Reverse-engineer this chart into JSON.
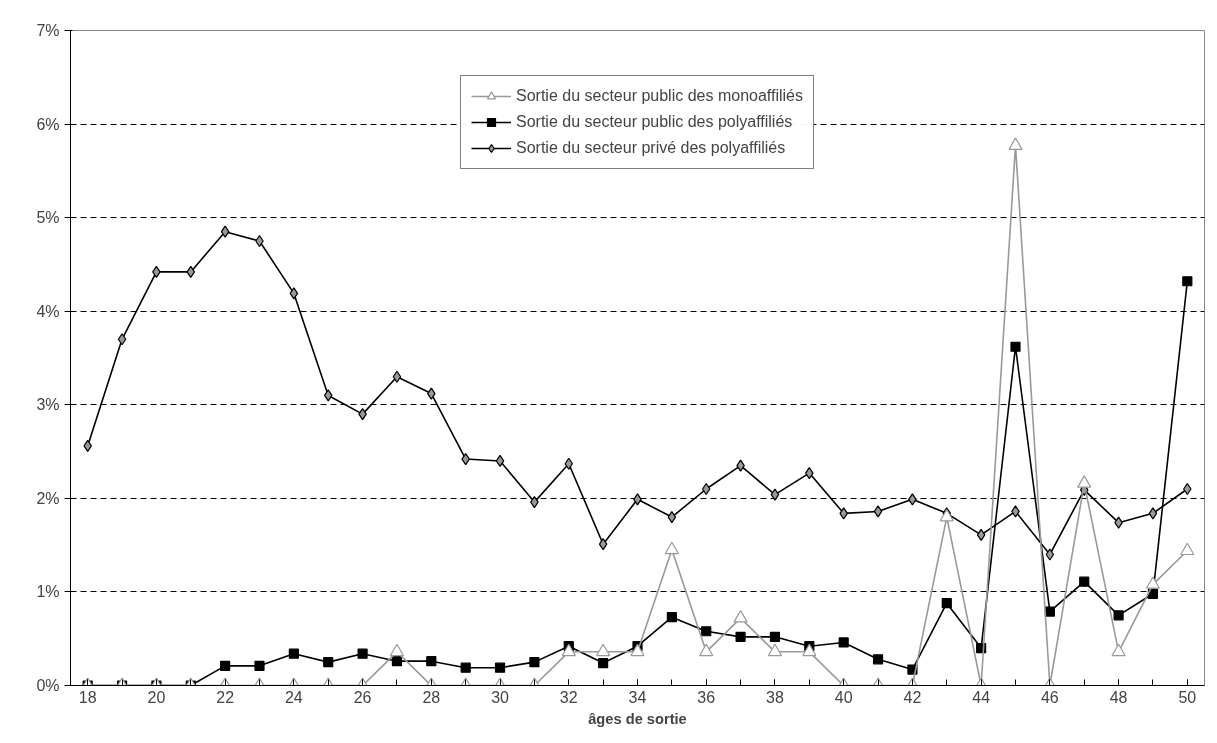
{
  "chart_data": {
    "type": "line",
    "xlabel": "âges de sortie",
    "x": [
      18,
      19,
      20,
      21,
      22,
      23,
      24,
      25,
      26,
      27,
      28,
      29,
      30,
      31,
      32,
      33,
      34,
      35,
      36,
      37,
      38,
      39,
      40,
      41,
      42,
      43,
      44,
      45,
      46,
      47,
      48,
      49,
      50
    ],
    "xlim": [
      17.5,
      50.5
    ],
    "xticks": [
      18,
      20,
      22,
      24,
      26,
      28,
      30,
      32,
      34,
      36,
      38,
      40,
      42,
      44,
      46,
      48,
      50
    ],
    "ylim": [
      0,
      7
    ],
    "yticks": [
      {
        "value": 0,
        "label": "0%"
      },
      {
        "value": 1,
        "label": "1%"
      },
      {
        "value": 2,
        "label": "2%"
      },
      {
        "value": 3,
        "label": "3%"
      },
      {
        "value": 4,
        "label": "4%"
      },
      {
        "value": 5,
        "label": "5%"
      },
      {
        "value": 6,
        "label": "6%"
      },
      {
        "value": 7,
        "label": "7%"
      }
    ],
    "grid": "y",
    "legend": "top",
    "line_style": "solid",
    "series": [
      {
        "name": "Sortie du secteur public des monoaffiliés",
        "color": "#999999",
        "marker": "triangle",
        "values": [
          0,
          0,
          0,
          0,
          0,
          0,
          0,
          0,
          0,
          0.36,
          0,
          0,
          0,
          0,
          0.36,
          0.36,
          0.36,
          1.45,
          0.36,
          0.72,
          0.36,
          0.36,
          0,
          0,
          0,
          1.8,
          0,
          5.77,
          0,
          2.16,
          0.36,
          1.08,
          1.44
        ]
      },
      {
        "name": "Sortie du secteur public des polyaffiliés",
        "color": "#000000",
        "marker": "square",
        "values": [
          0,
          0,
          0,
          0,
          0.21,
          0.21,
          0.34,
          0.25,
          0.34,
          0.26,
          0.26,
          0.19,
          0.19,
          0.25,
          0.42,
          0.24,
          0.42,
          0.73,
          0.58,
          0.52,
          0.52,
          0.42,
          0.46,
          0.28,
          0.17,
          0.88,
          0.4,
          3.62,
          0.79,
          1.11,
          0.75,
          0.98,
          4.32
        ]
      },
      {
        "name": "Sortie du secteur privé des polyaffiliés",
        "color": "#000000",
        "marker": "diamond",
        "values": [
          2.56,
          3.7,
          4.42,
          4.42,
          4.85,
          4.75,
          4.19,
          3.1,
          2.9,
          3.3,
          3.12,
          2.42,
          2.4,
          1.96,
          2.37,
          1.51,
          1.99,
          1.8,
          2.1,
          2.35,
          2.04,
          2.27,
          1.84,
          1.86,
          1.99,
          1.84,
          1.61,
          1.86,
          1.4,
          2.09,
          1.74,
          1.84,
          2.1
        ]
      }
    ]
  }
}
